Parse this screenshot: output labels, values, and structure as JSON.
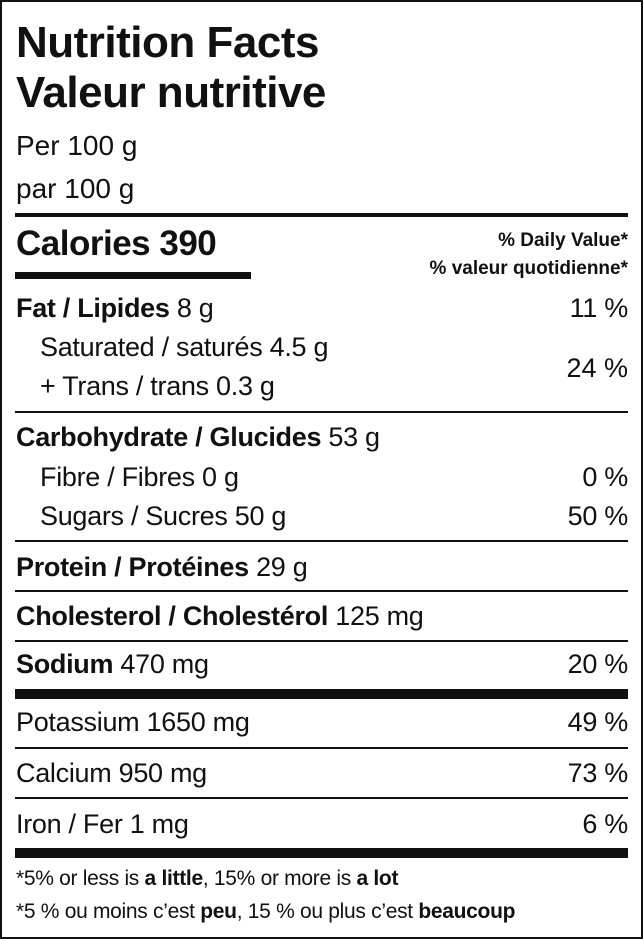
{
  "header": {
    "title_en": "Nutrition Facts",
    "title_fr": "Valeur nutritive",
    "serving_en": "Per 100 g",
    "serving_fr": "par 100 g"
  },
  "calories": {
    "label": "Calories",
    "value": "390"
  },
  "daily_value_header": {
    "en": "% Daily Value*",
    "fr": "% valeur quotidienne*"
  },
  "nutrients": {
    "fat": {
      "label": "Fat / Lipides",
      "amount": "8 g",
      "dv": "11 %"
    },
    "saturated": {
      "label": "Saturated / saturés",
      "amount": "4.5 g"
    },
    "trans": {
      "label": "+ Trans / trans",
      "amount": "0.3 g",
      "dv": "24 %"
    },
    "carbohydrate": {
      "label": "Carbohydrate / Glucides",
      "amount": "53 g"
    },
    "fibre": {
      "label": "Fibre / Fibres",
      "amount": "0 g",
      "dv": "0 %"
    },
    "sugars": {
      "label": "Sugars / Sucres",
      "amount": "50 g",
      "dv": "50 %"
    },
    "protein": {
      "label": "Protein / Protéines",
      "amount": "29 g"
    },
    "cholesterol": {
      "label": "Cholesterol / Cholestérol",
      "amount": "125 mg"
    },
    "sodium": {
      "label": "Sodium",
      "amount": "470 mg",
      "dv": "20 %"
    },
    "potassium": {
      "label": "Potassium",
      "amount": "1650 mg",
      "dv": "49 %"
    },
    "calcium": {
      "label": "Calcium",
      "amount": "950 mg",
      "dv": "73 %"
    },
    "iron": {
      "label": "Iron / Fer",
      "amount": "1 mg",
      "dv": "6 %"
    }
  },
  "footnote": {
    "en_1": "*5% or less is ",
    "en_2": "a little",
    "en_3": ", 15% or more is ",
    "en_4": "a lot",
    "fr_1": "*5 % ou moins c’est ",
    "fr_2": "peu",
    "fr_3": ", 15 % ou plus c’est ",
    "fr_4": "beaucoup"
  }
}
